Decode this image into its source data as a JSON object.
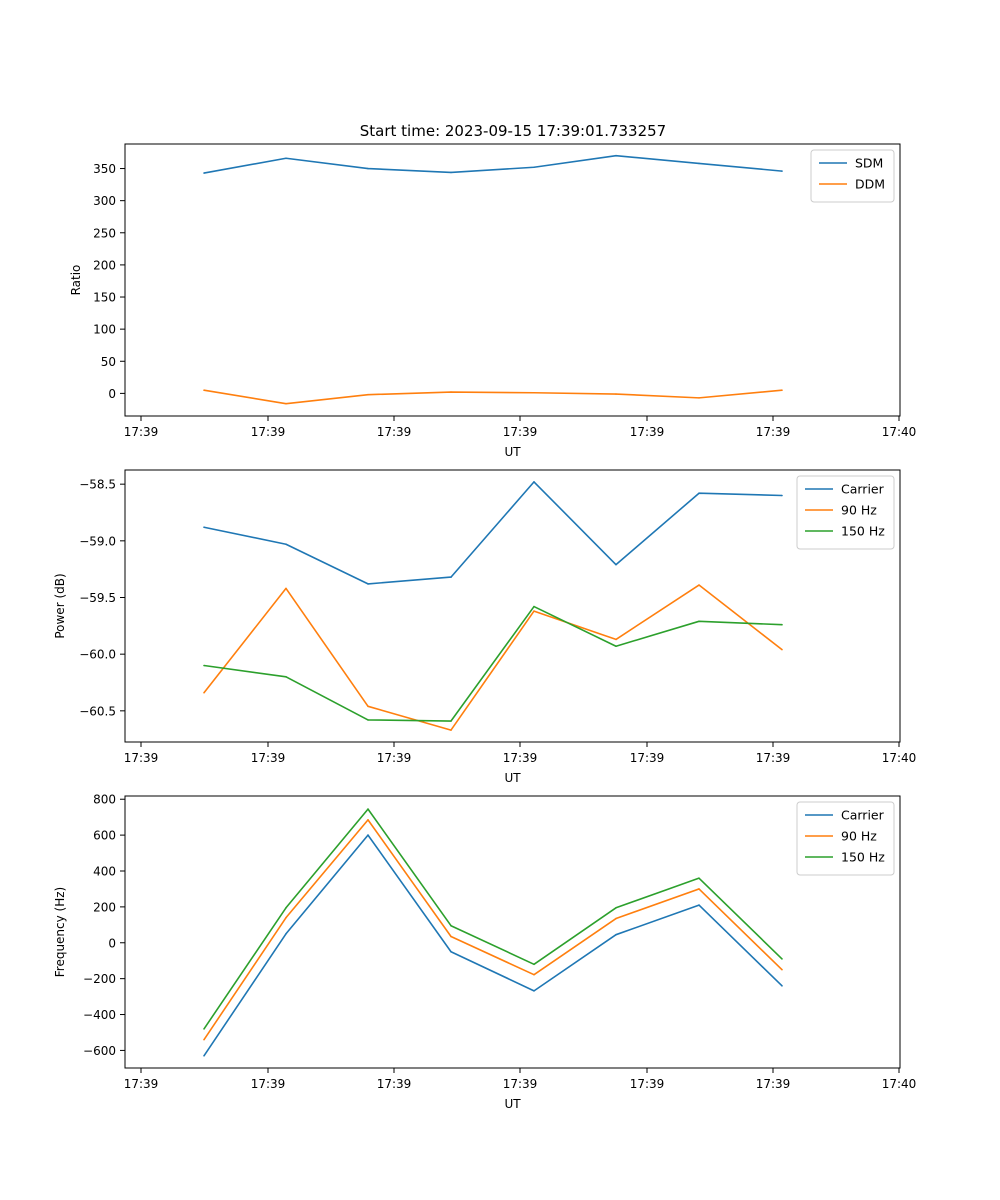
{
  "title": "Start time: 2023-09-15 17:39:01.733257",
  "colors": {
    "blue": "#1f77b4",
    "orange": "#ff7f0e",
    "green": "#2ca02c"
  },
  "chart_data": [
    {
      "type": "line",
      "xlabel": "UT",
      "ylabel": "Ratio",
      "x_tick_labels": [
        "17:39",
        "17:39",
        "17:39",
        "17:39",
        "17:39",
        "17:39",
        "17:39"
      ],
      "x_tick_labels_end": "17:40",
      "yticks": [
        0,
        50,
        100,
        150,
        200,
        250,
        300,
        350
      ],
      "ylim": [
        -35.2,
        388.2
      ],
      "legend_position": "top-right",
      "series": [
        {
          "name": "SDM",
          "color": "#1f77b4",
          "values": [
            343,
            366,
            350,
            344,
            352,
            370,
            358,
            346
          ]
        },
        {
          "name": "DDM",
          "color": "#ff7f0e",
          "values": [
            5,
            -16,
            -2,
            2,
            1,
            -1,
            -7,
            5
          ]
        }
      ]
    },
    {
      "type": "line",
      "xlabel": "UT",
      "ylabel": "Power (dB)",
      "x_tick_labels": [
        "17:39",
        "17:39",
        "17:39",
        "17:39",
        "17:39",
        "17:39",
        "17:39"
      ],
      "x_tick_labels_end": "17:40",
      "yticks": [
        -60.5,
        -60.0,
        -59.5,
        -59.0,
        -58.5
      ],
      "ytick_labels": [
        "−60.5",
        "−60.0",
        "−59.5",
        "−59.0",
        "−58.5"
      ],
      "ylim": [
        -60.775,
        -58.375
      ],
      "legend_position": "top-right",
      "series": [
        {
          "name": "Carrier",
          "color": "#1f77b4",
          "values": [
            -58.88,
            -59.03,
            -59.38,
            -59.32,
            -58.48,
            -59.21,
            -58.58,
            -58.6
          ]
        },
        {
          "name": "90 Hz",
          "color": "#ff7f0e",
          "values": [
            -60.34,
            -59.42,
            -60.46,
            -60.67,
            -59.62,
            -59.87,
            -59.39,
            -59.96
          ]
        },
        {
          "name": "150 Hz",
          "color": "#2ca02c",
          "values": [
            -60.1,
            -60.2,
            -60.58,
            -60.59,
            -59.58,
            -59.93,
            -59.71,
            -59.74
          ]
        }
      ]
    },
    {
      "type": "line",
      "xlabel": "UT",
      "ylabel": "Frequency (Hz)",
      "x_tick_labels": [
        "17:39",
        "17:39",
        "17:39",
        "17:39",
        "17:39",
        "17:39",
        "17:39"
      ],
      "x_tick_labels_end": "17:40",
      "yticks": [
        -600,
        -400,
        -200,
        0,
        200,
        400,
        600,
        800
      ],
      "ytick_labels": [
        "−600",
        "−400",
        "−200",
        "0",
        "200",
        "400",
        "600",
        "800"
      ],
      "ylim": [
        -698,
        818
      ],
      "legend_position": "top-right",
      "series": [
        {
          "name": "Carrier",
          "color": "#1f77b4",
          "values": [
            -630,
            50,
            600,
            -50,
            -268,
            45,
            210,
            -240
          ]
        },
        {
          "name": "90 Hz",
          "color": "#ff7f0e",
          "values": [
            -540,
            140,
            685,
            35,
            -178,
            135,
            300,
            -150
          ]
        },
        {
          "name": "150 Hz",
          "color": "#2ca02c",
          "values": [
            -480,
            195,
            745,
            95,
            -120,
            195,
            360,
            -90
          ]
        }
      ]
    }
  ]
}
